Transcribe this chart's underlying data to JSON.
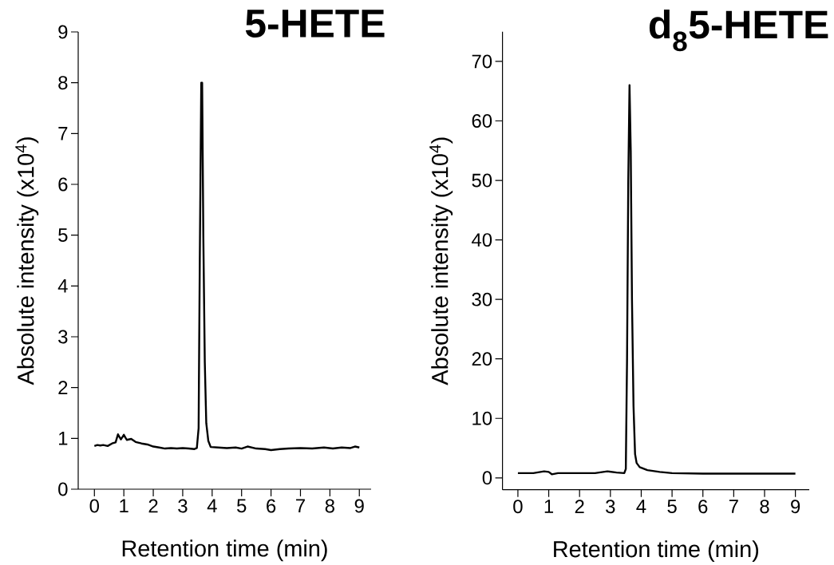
{
  "chart_data": [
    {
      "type": "line",
      "title": "5-HETE",
      "xlabel": "Retention time (min)",
      "ylabel": "Absolute intensity (x10$^{4}$)",
      "xlim": [
        -0.55,
        9.4
      ],
      "ylim": [
        0,
        9
      ],
      "xticks": [
        0,
        1,
        2,
        3,
        4,
        5,
        6,
        7,
        8,
        9
      ],
      "yticks": [
        0,
        1,
        2,
        3,
        4,
        5,
        6,
        7,
        8,
        9
      ],
      "grid": false,
      "line_style": "solid",
      "series": [
        {
          "color": "#000000",
          "x": [
            0,
            0.1,
            0.2,
            0.3,
            0.45,
            0.6,
            0.72,
            0.8,
            0.9,
            1.0,
            1.1,
            1.25,
            1.4,
            1.6,
            1.8,
            2.0,
            2.2,
            2.4,
            2.6,
            2.8,
            3.0,
            3.2,
            3.4,
            3.48,
            3.54,
            3.58,
            3.63,
            3.66,
            3.7,
            3.75,
            3.8,
            3.87,
            3.95,
            4.2,
            4.5,
            4.8,
            5.0,
            5.2,
            5.5,
            5.8,
            6.0,
            6.3,
            6.6,
            7.0,
            7.4,
            7.8,
            8.1,
            8.4,
            8.7,
            8.85,
            9.0
          ],
          "values": [
            0.85,
            0.87,
            0.86,
            0.87,
            0.85,
            0.9,
            0.92,
            1.08,
            0.98,
            1.07,
            0.97,
            0.99,
            0.93,
            0.9,
            0.88,
            0.84,
            0.82,
            0.8,
            0.81,
            0.8,
            0.81,
            0.8,
            0.79,
            0.81,
            1.2,
            4.5,
            8.0,
            8.0,
            5.0,
            2.5,
            1.3,
            0.95,
            0.83,
            0.82,
            0.81,
            0.82,
            0.8,
            0.84,
            0.8,
            0.79,
            0.77,
            0.79,
            0.8,
            0.81,
            0.8,
            0.82,
            0.8,
            0.82,
            0.81,
            0.84,
            0.82
          ]
        }
      ]
    },
    {
      "type": "line",
      "title": "d$_{8}$5-HETE",
      "xlabel": "Retention time (min)",
      "ylabel": "Absolute intensity (x10$^{4}$)",
      "xlim": [
        -0.5,
        9.45
      ],
      "ylim": [
        -2,
        75
      ],
      "xticks": [
        0,
        1,
        2,
        3,
        4,
        5,
        6,
        7,
        8,
        9
      ],
      "yticks": [
        0,
        10,
        20,
        30,
        40,
        50,
        60,
        70
      ],
      "grid": false,
      "line_style": "solid",
      "series": [
        {
          "color": "#000000",
          "x": [
            0,
            0.5,
            0.85,
            1.0,
            1.1,
            1.3,
            2.0,
            2.5,
            2.9,
            3.2,
            3.45,
            3.5,
            3.54,
            3.58,
            3.62,
            3.66,
            3.7,
            3.75,
            3.8,
            3.85,
            3.95,
            4.2,
            4.6,
            5.0,
            6.0,
            7.0,
            8.0,
            9.0
          ],
          "values": [
            0.8,
            0.8,
            1.1,
            1.0,
            0.6,
            0.8,
            0.8,
            0.8,
            1.1,
            0.9,
            0.8,
            1.5,
            20,
            50,
            66,
            55,
            30,
            12,
            4,
            2.5,
            1.8,
            1.3,
            1.0,
            0.8,
            0.7,
            0.7,
            0.7,
            0.7
          ]
        }
      ]
    }
  ]
}
